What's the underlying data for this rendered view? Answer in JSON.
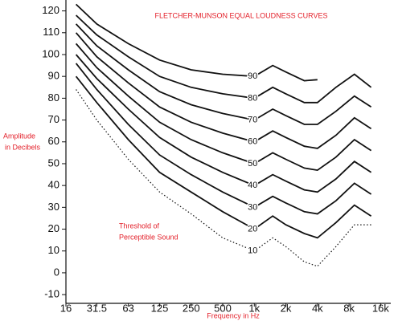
{
  "chart_data": {
    "type": "line",
    "title": "FLETCHER-MUNSON EQUAL LOUDNESS CURVES",
    "y_label": [
      "Amplitude",
      "in Decibels"
    ],
    "x_label": "Frequency in Hz",
    "annotation": [
      "Threshold of",
      "Perceptible Sound"
    ],
    "text_color": "#e3202a",
    "xscale": "log",
    "xlim": [
      16,
      20000
    ],
    "xticks": [
      16,
      31.5,
      63,
      125,
      250,
      500,
      {
        "value": 1000,
        "label": "1k"
      },
      {
        "value": 2000,
        "label": "2k"
      },
      {
        "value": 4000,
        "label": "4k"
      },
      {
        "value": 8000,
        "label": "8k"
      },
      {
        "value": 16000,
        "label": "16k"
      }
    ],
    "ylim": [
      -14,
      125
    ],
    "yticks": [
      -10,
      0,
      10,
      20,
      30,
      40,
      50,
      60,
      70,
      80,
      90,
      100,
      110,
      120
    ],
    "x": [
      20,
      31.5,
      63,
      125,
      250,
      500,
      1000,
      1500,
      2000,
      3000,
      4000,
      6000,
      9000,
      13000
    ],
    "series": [
      {
        "name": "90",
        "color": "#111",
        "line_style": "solid",
        "values": [
          123,
          114,
          105,
          97.5,
          93,
          91,
          90,
          95,
          92,
          88,
          88.5,
          null,
          null,
          null
        ]
      },
      {
        "name": "80",
        "color": "#111",
        "line_style": "solid",
        "values": [
          118,
          109,
          99,
          90,
          85,
          82,
          80,
          85,
          82,
          78,
          78,
          85,
          91,
          85
        ]
      },
      {
        "name": "70",
        "color": "#111",
        "line_style": "solid",
        "values": [
          114,
          104,
          93,
          83,
          77,
          73,
          70,
          75,
          72,
          68,
          68,
          74,
          81,
          76
        ]
      },
      {
        "name": "60",
        "color": "#111",
        "line_style": "solid",
        "values": [
          110,
          99,
          87,
          76,
          69,
          64,
          60,
          65,
          62,
          58,
          57,
          63,
          71,
          66
        ]
      },
      {
        "name": "50",
        "color": "#111",
        "line_style": "solid",
        "values": [
          105,
          94,
          81,
          69,
          61,
          55,
          50,
          55,
          52,
          48,
          47,
          53,
          61,
          56
        ]
      },
      {
        "name": "40",
        "color": "#111",
        "line_style": "solid",
        "values": [
          100,
          89,
          75,
          62,
          53,
          46,
          40,
          45,
          42,
          38,
          37,
          43,
          51,
          46
        ]
      },
      {
        "name": "30",
        "color": "#111",
        "line_style": "solid",
        "values": [
          96,
          84,
          68,
          54,
          45,
          37,
          30,
          35,
          32,
          28,
          27,
          33,
          41,
          36
        ]
      },
      {
        "name": "20",
        "color": "#111",
        "line_style": "solid",
        "values": [
          90,
          78,
          61,
          46,
          37,
          28,
          20,
          26,
          22,
          18,
          16,
          23,
          31,
          26
        ]
      },
      {
        "name": "10",
        "color": "#111",
        "line_style": "dotted",
        "values": [
          84,
          70,
          52,
          37,
          27,
          16,
          10,
          16,
          12,
          5,
          3,
          12,
          22,
          22
        ]
      }
    ]
  }
}
